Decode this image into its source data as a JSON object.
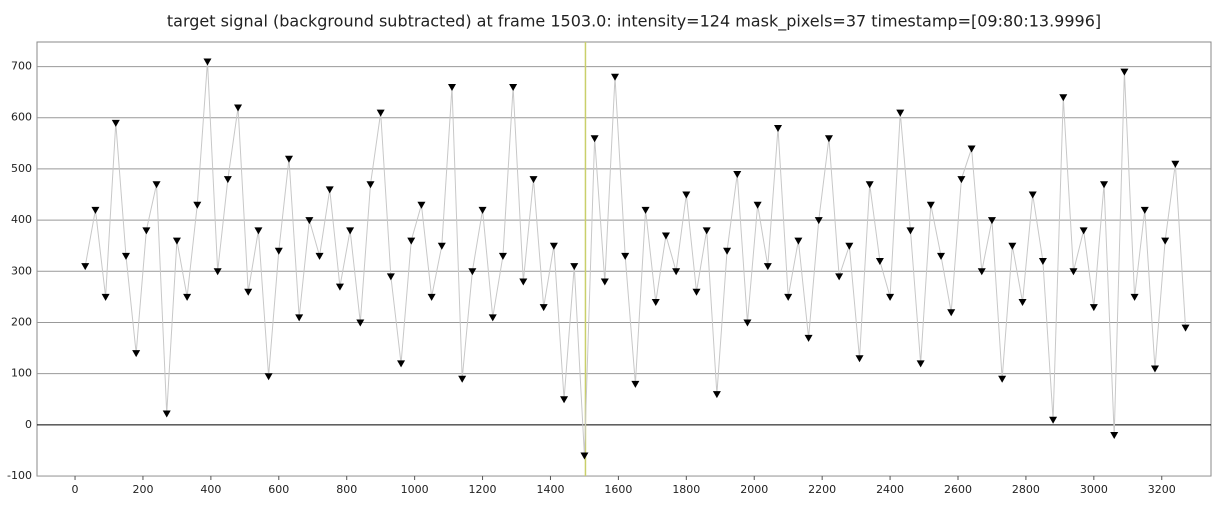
{
  "chart_data": {
    "type": "line",
    "title": "target signal (background subtracted) at frame 1503.0: intensity=124 mask_pixels=37 timestamp=[09:80:13.9996]",
    "x": [
      30,
      60,
      90,
      120,
      150,
      180,
      210,
      240,
      270,
      300,
      330,
      360,
      390,
      420,
      450,
      480,
      510,
      540,
      570,
      600,
      630,
      660,
      690,
      720,
      750,
      780,
      810,
      840,
      870,
      900,
      930,
      960,
      990,
      1020,
      1050,
      1080,
      1110,
      1140,
      1170,
      1200,
      1230,
      1260,
      1290,
      1320,
      1350,
      1380,
      1410,
      1440,
      1470,
      1500,
      1530,
      1560,
      1590,
      1620,
      1650,
      1680,
      1710,
      1740,
      1770,
      1800,
      1830,
      1860,
      1890,
      1920,
      1950,
      1980,
      2010,
      2040,
      2070,
      2100,
      2130,
      2160,
      2190,
      2220,
      2250,
      2280,
      2310,
      2340,
      2370,
      2400,
      2430,
      2460,
      2490,
      2520,
      2550,
      2580,
      2610,
      2640,
      2670,
      2700,
      2730,
      2760,
      2790,
      2820,
      2850,
      2880,
      2910,
      2940,
      2970,
      3000,
      3030,
      3060,
      3090,
      3120,
      3150,
      3180,
      3210,
      3240,
      3270
    ],
    "values": [
      310,
      420,
      250,
      590,
      330,
      140,
      380,
      470,
      22,
      360,
      250,
      430,
      710,
      300,
      480,
      620,
      260,
      380,
      95,
      340,
      520,
      210,
      400,
      330,
      460,
      270,
      380,
      200,
      470,
      610,
      290,
      120,
      360,
      430,
      250,
      350,
      660,
      90,
      300,
      420,
      210,
      330,
      660,
      280,
      480,
      230,
      350,
      50,
      310,
      -60,
      560,
      280,
      680,
      330,
      80,
      420,
      240,
      370,
      300,
      450,
      260,
      380,
      60,
      340,
      490,
      200,
      430,
      310,
      580,
      250,
      360,
      170,
      400,
      560,
      290,
      350,
      130,
      470,
      320,
      250,
      610,
      380,
      120,
      430,
      330,
      220,
      480,
      540,
      300,
      400,
      90,
      350,
      240,
      450,
      320,
      10,
      640,
      300,
      380,
      230,
      470,
      -20,
      690,
      250,
      420,
      110,
      360,
      510,
      190
    ],
    "color": "#000000",
    "line_color": "#c8c8c8",
    "frame_marker": 1503,
    "frame_marker_color": "#c9cf6a",
    "xlim": [
      -112,
      3345
    ],
    "ylim": [
      -100,
      748
    ],
    "xticks": [
      0,
      200,
      400,
      600,
      800,
      1000,
      1200,
      1400,
      1600,
      1800,
      2000,
      2200,
      2400,
      2600,
      2800,
      3000,
      3200
    ],
    "yticks": [
      -100,
      0,
      100,
      200,
      300,
      400,
      500,
      600,
      700
    ],
    "grid": true
  }
}
